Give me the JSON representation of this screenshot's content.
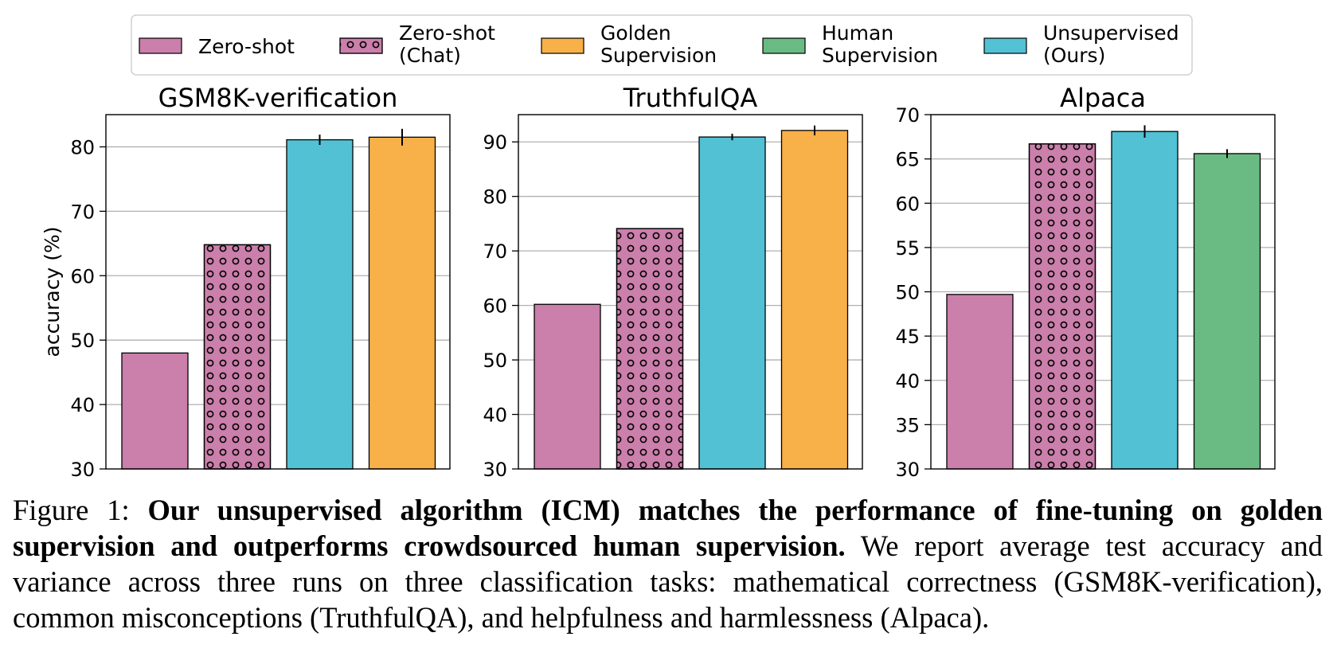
{
  "legend": [
    {
      "key": "zero_shot",
      "label_lines": [
        "Zero-shot"
      ],
      "color": "#cb7fab",
      "hatch": false
    },
    {
      "key": "zero_shot_chat",
      "label_lines": [
        "Zero-shot",
        "(Chat)"
      ],
      "color": "#cb7fab",
      "hatch": true
    },
    {
      "key": "golden",
      "label_lines": [
        "Golden",
        "Supervision"
      ],
      "color": "#f8b049",
      "hatch": false
    },
    {
      "key": "human",
      "label_lines": [
        "Human",
        "Supervision"
      ],
      "color": "#69bb83",
      "hatch": false
    },
    {
      "key": "unsupervised",
      "label_lines": [
        "Unsupervised",
        "(Ours)"
      ],
      "color": "#52c1d4",
      "hatch": false
    }
  ],
  "chart_data": [
    {
      "type": "bar",
      "title": "GSM8K-verification",
      "ylabel": "accuracy (%)",
      "ylim": [
        30,
        85
      ],
      "yticks": [
        30,
        40,
        50,
        60,
        70,
        80
      ],
      "grid": true,
      "bars": [
        {
          "series": "zero_shot",
          "value": 48.0,
          "err": 0
        },
        {
          "series": "zero_shot_chat",
          "value": 64.8,
          "err": 0
        },
        {
          "series": "unsupervised",
          "value": 81.1,
          "err": 0.8
        },
        {
          "series": "golden",
          "value": 81.5,
          "err": 1.3
        }
      ]
    },
    {
      "type": "bar",
      "title": "TruthfulQA",
      "ylabel": "",
      "ylim": [
        30,
        95
      ],
      "yticks": [
        30,
        40,
        50,
        60,
        70,
        80,
        90
      ],
      "grid": true,
      "bars": [
        {
          "series": "zero_shot",
          "value": 60.2,
          "err": 0
        },
        {
          "series": "zero_shot_chat",
          "value": 74.1,
          "err": 0
        },
        {
          "series": "unsupervised",
          "value": 90.9,
          "err": 0.6
        },
        {
          "series": "golden",
          "value": 92.1,
          "err": 0.9
        }
      ]
    },
    {
      "type": "bar",
      "title": "Alpaca",
      "ylabel": "",
      "ylim": [
        30,
        70
      ],
      "yticks": [
        30,
        35,
        40,
        45,
        50,
        55,
        60,
        65,
        70
      ],
      "grid": true,
      "bars": [
        {
          "series": "zero_shot",
          "value": 49.7,
          "err": 0
        },
        {
          "series": "zero_shot_chat",
          "value": 66.7,
          "err": 0
        },
        {
          "series": "unsupervised",
          "value": 68.1,
          "err": 0.7
        },
        {
          "series": "human",
          "value": 65.6,
          "err": 0.5
        }
      ]
    }
  ],
  "caption": {
    "label": "Figure 1:",
    "bold": "Our unsupervised algorithm (ICM) matches the performance of fine-tuning on golden supervision and outperforms crowdsourced human supervision.",
    "text": "We report average test accuracy and variance across three runs on three classification tasks: mathematical correctness (GSM8K-verification), common misconceptions (TruthfulQA), and helpfulness and harmlessness (Alpaca)."
  }
}
